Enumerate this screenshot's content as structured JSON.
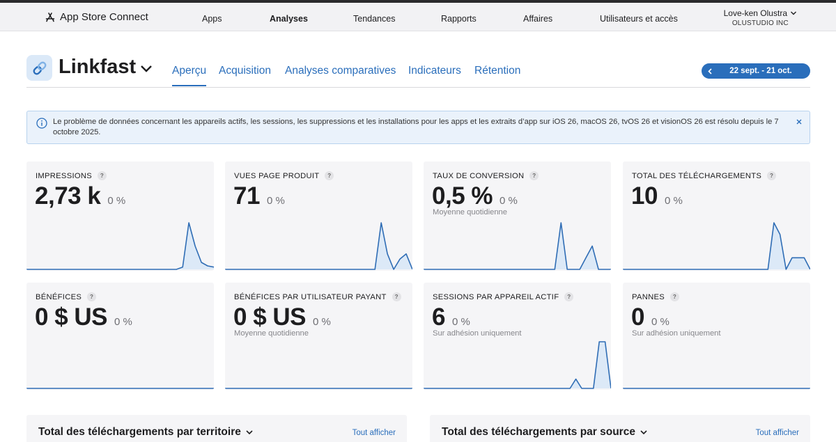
{
  "header": {
    "brand": "App Store Connect",
    "nav": [
      {
        "label": "Apps",
        "active": false
      },
      {
        "label": "Analyses",
        "active": true
      },
      {
        "label": "Tendances",
        "active": false
      },
      {
        "label": "Rapports",
        "active": false
      },
      {
        "label": "Affaires",
        "active": false
      },
      {
        "label": "Utilisateurs et accès",
        "active": false
      }
    ],
    "account_name": "Love-ken Olustra",
    "account_org": "OLUSTUDIO INC"
  },
  "app": {
    "name": "Linkfast",
    "tabs": [
      {
        "label": "Aperçu",
        "active": true
      },
      {
        "label": "Acquisition",
        "active": false
      },
      {
        "label": "Analyses comparatives",
        "active": false
      },
      {
        "label": "Indicateurs",
        "active": false
      },
      {
        "label": "Rétention",
        "active": false
      }
    ],
    "date_range": "22 sept. - 21 oct."
  },
  "banner": {
    "text": "Le problème de données concernant les appareils actifs, les sessions, les suppressions et les installations pour les apps et les extraits d’app sur iOS 26, macOS 26, tvOS 26 et visionOS 26 est résolu depuis le 7 octobre 2025."
  },
  "metrics": [
    {
      "title": "IMPRESSIONS",
      "value": "2,73 k",
      "delta": "0 %",
      "subtitle": "",
      "series": [
        0,
        0,
        0,
        0,
        0,
        0,
        0,
        0,
        0,
        0,
        0,
        0,
        0,
        0,
        0,
        0,
        0,
        0,
        0,
        0,
        0,
        0,
        0,
        0,
        0,
        2,
        40,
        20,
        6,
        3,
        2
      ]
    },
    {
      "title": "VUES PAGE PRODUIT",
      "value": "71",
      "delta": "0 %",
      "subtitle": "",
      "series": [
        0,
        0,
        0,
        0,
        0,
        0,
        0,
        0,
        0,
        0,
        0,
        0,
        0,
        0,
        0,
        0,
        0,
        0,
        0,
        0,
        0,
        0,
        0,
        0,
        0,
        18,
        6,
        0,
        4,
        6,
        0
      ]
    },
    {
      "title": "TAUX DE CONVERSION",
      "value": "0,5 %",
      "delta": "0 %",
      "subtitle": "Moyenne quotidienne",
      "series": [
        0,
        0,
        0,
        0,
        0,
        0,
        0,
        0,
        0,
        0,
        0,
        0,
        0,
        0,
        0,
        0,
        0,
        0,
        0,
        0,
        0,
        0,
        12,
        0,
        0,
        0,
        3,
        6,
        0,
        0,
        0
      ]
    },
    {
      "title": "TOTAL DES TÉLÉCHARGEMENTS",
      "value": "10",
      "delta": "0 %",
      "subtitle": "",
      "series": [
        0,
        0,
        0,
        0,
        0,
        0,
        0,
        0,
        0,
        0,
        0,
        0,
        0,
        0,
        0,
        0,
        0,
        0,
        0,
        0,
        0,
        0,
        0,
        0,
        0,
        4,
        3,
        0,
        1,
        1,
        1,
        0
      ]
    },
    {
      "title": "BÉNÉFICES",
      "value": "0 $ US",
      "delta": "0 %",
      "subtitle": "",
      "series": [
        0,
        0,
        0,
        0,
        0,
        0,
        0,
        0,
        0,
        0,
        0,
        0,
        0,
        0,
        0,
        0,
        0,
        0,
        0,
        0,
        0,
        0,
        0,
        0,
        0,
        0,
        0,
        0,
        0,
        0,
        0
      ]
    },
    {
      "title": "BÉNÉFICES PAR UTILISATEUR PAYANT",
      "value": "0 $ US",
      "delta": "0 %",
      "subtitle": "Moyenne quotidienne",
      "series": [
        0,
        0,
        0,
        0,
        0,
        0,
        0,
        0,
        0,
        0,
        0,
        0,
        0,
        0,
        0,
        0,
        0,
        0,
        0,
        0,
        0,
        0,
        0,
        0,
        0,
        0,
        0,
        0,
        0,
        0,
        0
      ]
    },
    {
      "title": "SESSIONS PAR APPAREIL ACTIF",
      "value": "6",
      "delta": "0 %",
      "subtitle": "Sur adhésion uniquement",
      "series": [
        0,
        0,
        0,
        0,
        0,
        0,
        0,
        0,
        0,
        0,
        0,
        0,
        0,
        0,
        0,
        0,
        0,
        0,
        0,
        0,
        0,
        0,
        0,
        0,
        0,
        0,
        2,
        0,
        0,
        0,
        10,
        10,
        0
      ]
    },
    {
      "title": "PANNES",
      "value": "0",
      "delta": "0 %",
      "subtitle": "Sur adhésion uniquement",
      "series": [
        0,
        0,
        0,
        0,
        0,
        0,
        0,
        0,
        0,
        0,
        0,
        0,
        0,
        0,
        0,
        0,
        0,
        0,
        0,
        0,
        0,
        0,
        0,
        0,
        0,
        0,
        0,
        0,
        0,
        0,
        0
      ]
    }
  ],
  "bottom": [
    {
      "title": "Total des téléchargements par territoire",
      "link": "Tout afficher"
    },
    {
      "title": "Total des téléchargements par source",
      "link": "Tout afficher"
    }
  ],
  "colors": {
    "accent": "#2a6ebb",
    "spark_line": "#2f6db5",
    "spark_fill": "#dce9f7"
  }
}
